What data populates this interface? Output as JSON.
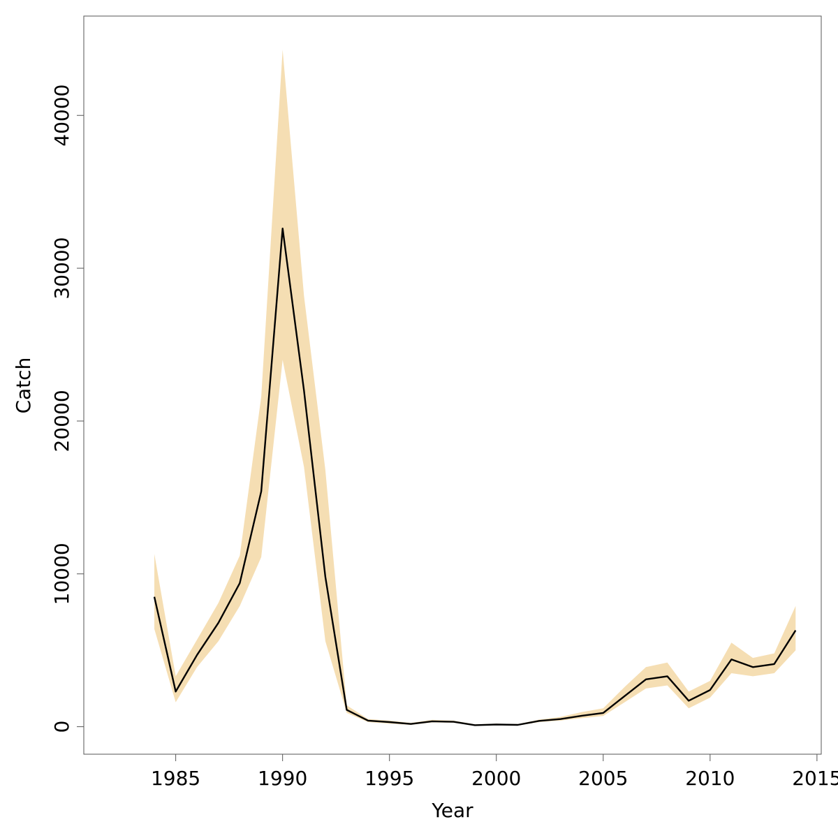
{
  "chart_data": {
    "type": "line",
    "xlabel": "Year",
    "ylabel": "Catch",
    "xlim": [
      1980.7,
      2015.2
    ],
    "ylim": [
      -1800,
      46500
    ],
    "x_ticks": [
      1985,
      1990,
      1995,
      2000,
      2005,
      2010,
      2015
    ],
    "x_tick_labels": [
      "1985",
      "1990",
      "1995",
      "2000",
      "2005",
      "2010",
      "2015"
    ],
    "y_ticks": [
      0,
      10000,
      20000,
      30000,
      40000
    ],
    "y_tick_labels": [
      "0",
      "10000",
      "20000",
      "30000",
      "40000"
    ],
    "grid": false,
    "colors": {
      "line": "#000000",
      "band": "#f5deb3"
    },
    "series": [
      {
        "x": [
          1984,
          1985,
          1986,
          1987,
          1988,
          1989,
          1990,
          1991,
          1992,
          1993,
          1994,
          1995,
          1996,
          1997,
          1998,
          1999,
          2000,
          2001,
          2002,
          2003,
          2004,
          2005,
          2006,
          2007,
          2008,
          2009,
          2010,
          2011,
          2012,
          2013,
          2014
        ],
        "values": [
          8500,
          2300,
          4700,
          6800,
          9400,
          15400,
          32600,
          22000,
          9800,
          1100,
          400,
          300,
          180,
          350,
          320,
          100,
          140,
          120,
          380,
          500,
          720,
          900,
          2000,
          3100,
          3300,
          1700,
          2400,
          4400,
          3900,
          4100,
          6300
        ],
        "lower": [
          6400,
          1600,
          3900,
          5600,
          7900,
          11100,
          24000,
          17000,
          5600,
          900,
          300,
          200,
          120,
          280,
          260,
          70,
          100,
          80,
          300,
          400,
          560,
          700,
          1600,
          2500,
          2700,
          1200,
          1900,
          3500,
          3300,
          3500,
          5000
        ],
        "upper": [
          11300,
          3300,
          5700,
          8100,
          11200,
          21600,
          44300,
          28200,
          16800,
          1400,
          500,
          400,
          250,
          450,
          400,
          150,
          200,
          170,
          460,
          640,
          960,
          1200,
          2600,
          3900,
          4200,
          2300,
          3000,
          5500,
          4500,
          4800,
          7900
        ]
      }
    ]
  }
}
